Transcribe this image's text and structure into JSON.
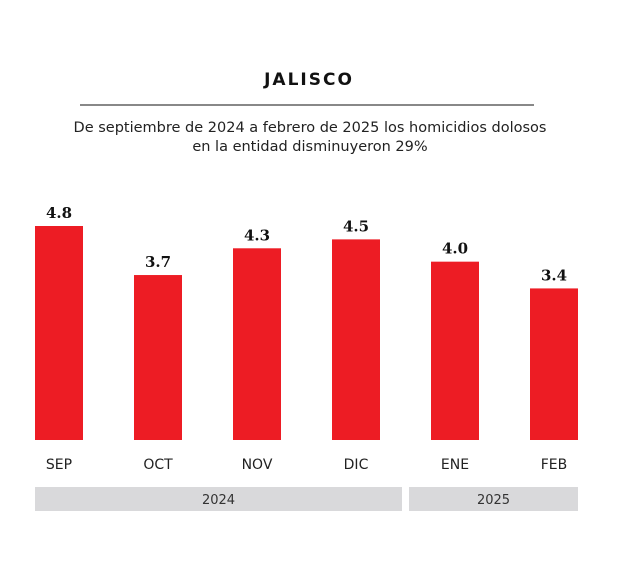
{
  "chart_data": {
    "type": "bar",
    "title": "JALISCO",
    "subtitle": "De septiembre de 2024 a febrero de 2025 los homicidios dolosos en la entidad disminuyeron 29%",
    "subtitle_lines": [
      "De septiembre de 2024 a febrero de 2025 los homicidios dolosos",
      "en la entidad disminuyeron 29%"
    ],
    "categories": [
      "SEP",
      "OCT",
      "NOV",
      "DIC",
      "ENE",
      "FEB"
    ],
    "values": [
      4.8,
      3.7,
      4.3,
      4.5,
      4.0,
      3.4
    ],
    "value_labels": [
      "4.8",
      "3.7",
      "4.3",
      "4.5",
      "4.0",
      "3.4"
    ],
    "groups": [
      {
        "label": "2024",
        "span": 4
      },
      {
        "label": "2025",
        "span": 2
      }
    ],
    "bar_color": "#ed1c24",
    "group_color": "#d9d9db",
    "ylim": [
      0,
      4.8
    ],
    "xlabel": "",
    "ylabel": ""
  }
}
